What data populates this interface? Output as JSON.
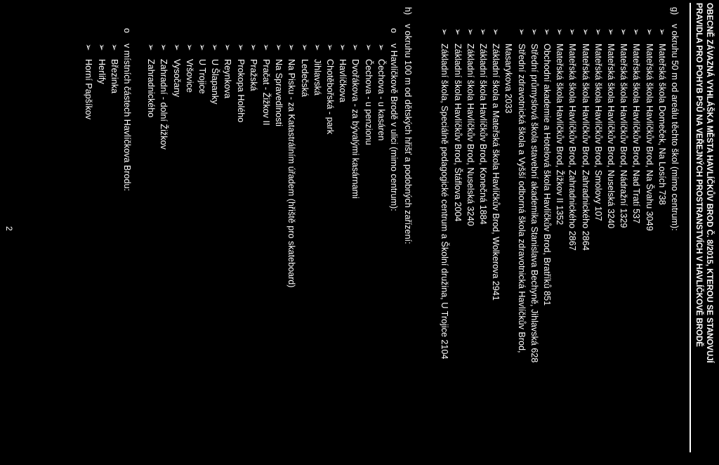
{
  "header": {
    "line1": "OBECNĚ ZÁVAZNÁ VYHLÁŠKA MĚSTA HAVLÍČKŮV BROD Č. 8/2015, KTEROU SE STANOVUJÍ",
    "line2": "PRAVIDLA PRO POHYB PSŮ NA VEŘEJNÝCH PROSTRANSTVÍCH V HAVLÍČKOVĚ BRODĚ"
  },
  "section_g": {
    "letter": "g)",
    "title": "v okruhu 50 m od areálu těchto škol (mimo centrum):",
    "bullet": "➢",
    "items": [
      "Mateřská škola Domeček, Na Losích 738",
      "Mateřská škola Havlíčkův Brod, Na Švahu 3049",
      "Mateřská škola Havlíčkův Brod, Nad Tratí 537",
      "Mateřská škola Havlíčkův Brod, Nádražní 1329",
      "Mateřská škola Havlíčkův Brod, Nuselská 3240",
      "Mateřská škola Havlíčkův Brod, Smolovy 107",
      "Mateřská škola Havlíčkův Brod, Zahradnického 2864",
      "Mateřská škola Havlíčkův Brod, Zahradnického 2867",
      "Mateřská škola Havlíčkův Brod, Žižkov II 1352",
      "Obchodní akademie a Hotelová škola Havlíčkův Brod, Bratříků 851",
      "Střední průmyslová škola stavební akademika Stanislava Bechyně, Jihlavská 628",
      "Střední  zdravotnická  škola  a  Vyšší  odborná  škola  zdravotnická  Havlíčkův  Brod,",
      "Základní škola a Mateřská škola Havlíčkův Brod, Wolkerova 2941",
      "Základní škola Havlíčkův Brod, Konečná 1884",
      "Základní škola Havlíčkův Brod, Nuselská 3240",
      "Základní škola Havlíčkův Brod, Štáflova 2004",
      "Základní škola, Speciálně pedagogické centrum a Školní družina, U Trojice 2104"
    ],
    "continuation": "Masarykova 2033"
  },
  "section_h": {
    "letter": "h)",
    "title": "v okruhu 100 m od dětských hřišť a podobných zařízení:",
    "sub1": {
      "marker": "o",
      "title": "v Havlíčkově Brodě v ulici (mimo centrum):",
      "items": [
        "Čechova - u kasáren",
        "Čechova - u penzionu",
        "Dvořákova - za bývalými kasárnami",
        "Havlíčkova",
        "Chotěbořská - park",
        "Jihlavská",
        "Ledečská",
        "Na Pisku - za Katastrálním úřadem (hřiště pro skateboard)",
        "Na Spravedlnosti",
        "Pračat - Žižkov II",
        "Pražská",
        "Prokopa Holého",
        "Reynkova",
        "U Šlapanky",
        "U Trojice",
        "Vršovice",
        "Vysočany",
        "Zahradní - dolní Žižkov",
        "Zahradnického"
      ]
    },
    "sub2": {
      "marker": "o",
      "title": "v místních částech Havlíčkova Brodu:",
      "items": [
        "Březinka",
        "Herlify",
        "Horní Papšíkov"
      ]
    }
  },
  "page_number": "2"
}
